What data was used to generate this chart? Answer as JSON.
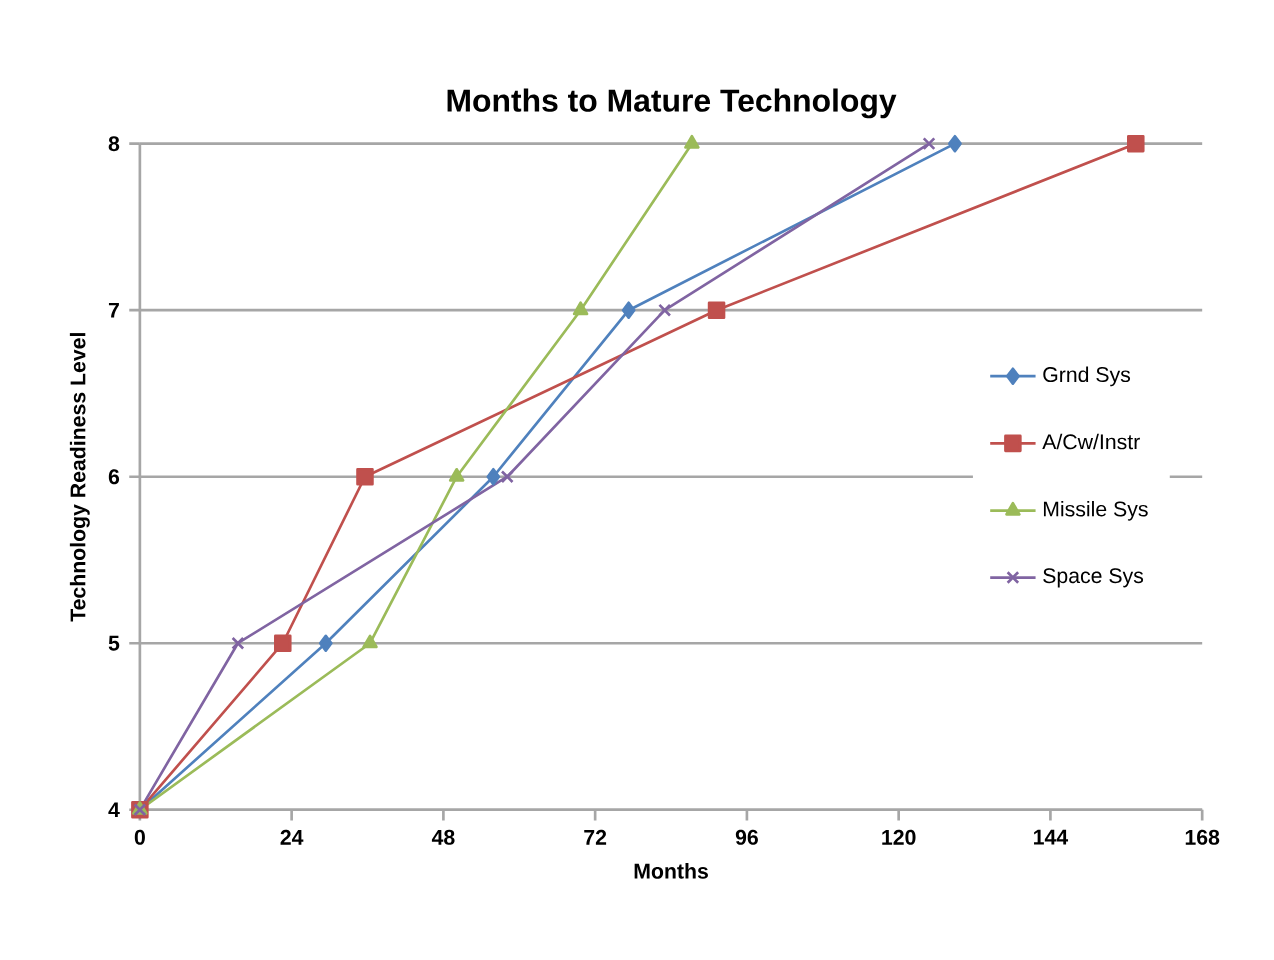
{
  "chart_data": {
    "type": "line",
    "title": "Months to Mature Technology",
    "xlabel": "Months",
    "ylabel": "Technology Readiness Level",
    "xlim": [
      0,
      168
    ],
    "xticks": [
      0,
      24,
      48,
      72,
      96,
      120,
      144,
      168
    ],
    "ylim": [
      4,
      8
    ],
    "yticks": [
      4,
      5,
      6,
      7,
      8
    ],
    "grid": "y",
    "legend": "right",
    "series": [
      {
        "name": "Grnd Sys",
        "color": "#4f81bd",
        "marker": "diamond",
        "x": [
          0,
          29.4,
          55.9,
          77.3,
          128.9
        ],
        "values": [
          4,
          5,
          6,
          7,
          8
        ]
      },
      {
        "name": "A/Cw/Instr",
        "color": "#c0504d",
        "marker": "square",
        "x": [
          0,
          22.6,
          35.6,
          91.2,
          157.5
        ],
        "values": [
          4,
          5,
          6,
          7,
          8
        ]
      },
      {
        "name": "Missile Sys",
        "color": "#9bbb59",
        "marker": "triangle",
        "x": [
          0,
          36.4,
          50.1,
          69.7,
          87.3
        ],
        "values": [
          4,
          5,
          6,
          7,
          8
        ]
      },
      {
        "name": "Space Sys",
        "color": "#8064a2",
        "marker": "cross",
        "x": [
          0,
          15.5,
          58.1,
          83,
          124.8
        ],
        "values": [
          4,
          5,
          6,
          7,
          8
        ]
      }
    ]
  }
}
